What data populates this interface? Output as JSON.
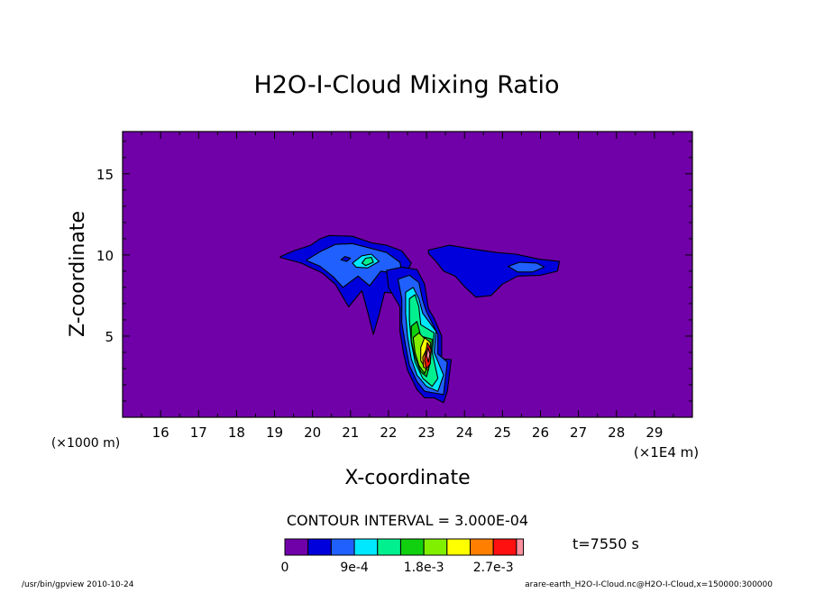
{
  "chart_data": {
    "type": "heatmap",
    "title": "H2O-I-Cloud Mixing Ratio",
    "xlabel": "X-coordinate",
    "ylabel": "Z-coordinate",
    "x_unit_label": "(×1E4 m)",
    "y_unit_label": "(×1000 m)",
    "xlim": [
      15,
      30
    ],
    "ylim": [
      0,
      17.6
    ],
    "x_ticks": [
      16,
      17,
      18,
      19,
      20,
      21,
      22,
      23,
      24,
      25,
      26,
      27,
      28,
      29
    ],
    "y_ticks": [
      5,
      10,
      15
    ],
    "contour_interval_text": "CONTOUR INTERVAL = 3.000E-04",
    "contour_interval": 0.0003,
    "time_text": "t=7550 s",
    "colorbar": {
      "levels": [
        0,
        0.0003,
        0.0006,
        0.0009,
        0.0012,
        0.0015,
        0.0018,
        0.0021,
        0.0024,
        0.0027,
        0.003
      ],
      "colors": [
        "#7000a8",
        "#0000dc",
        "#2060ff",
        "#00e8ff",
        "#00f090",
        "#10d010",
        "#80f000",
        "#ffff00",
        "#ff8000",
        "#ff1010",
        "#ff90a0"
      ],
      "tick_labels": [
        "0",
        "9e-4",
        "1.8e-3",
        "2.7e-3"
      ],
      "tick_values": [
        0,
        0.0009,
        0.0018,
        0.0027
      ]
    },
    "background_value": 0,
    "features": [
      {
        "name": "upper anvil",
        "x_range": [
          19.1,
          22.6
        ],
        "z_range": [
          7.9,
          11.2
        ],
        "max_level": 0.0012
      },
      {
        "name": "right detached anvil",
        "x_range": [
          23.0,
          26.5
        ],
        "z_range": [
          7.4,
          10.6
        ],
        "max_level": 0.0006
      },
      {
        "name": "main column",
        "x_range": [
          22.3,
          23.6
        ],
        "z_range": [
          0.9,
          8.7
        ],
        "max_level": 0.003
      }
    ]
  },
  "footer": {
    "left": "/usr/bin/gpview  2010-10-24",
    "right": "arare-earth_H2O-I-Cloud.nc@H2O-I-Cloud,x=150000:300000"
  }
}
